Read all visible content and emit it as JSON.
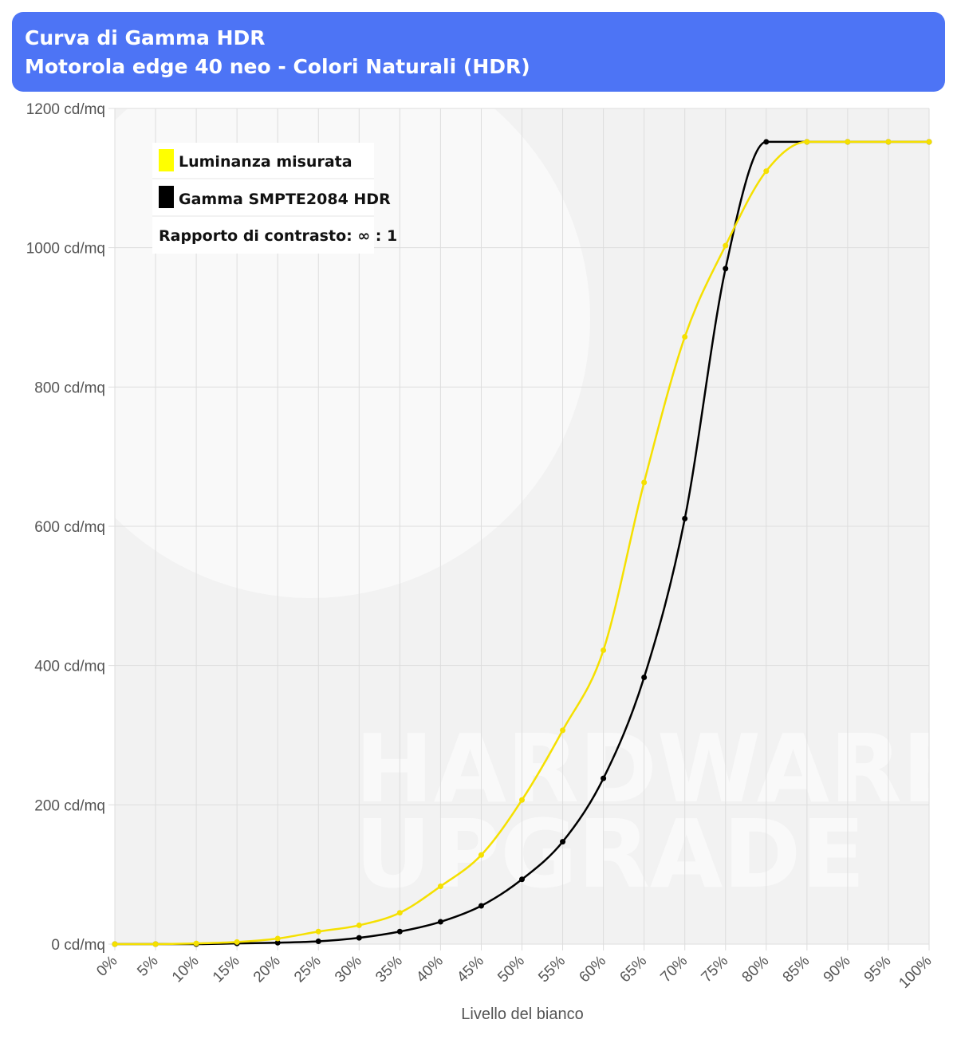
{
  "header": {
    "title": "Curva di Gamma HDR",
    "subtitle": "Motorola edge 40 neo - Colori Naturali (HDR)"
  },
  "watermark": {
    "line1": "HARDWARE",
    "line2": "UPGRADE"
  },
  "legend": {
    "items": [
      {
        "label": "Luminanza misurata",
        "color": "#ffff00"
      },
      {
        "label": "Gamma SMPTE2084 HDR",
        "color": "#000000"
      }
    ],
    "contrast": "Rapporto di contrasto: ∞ : 1"
  },
  "chart_data": {
    "type": "line",
    "xlabel": "Livello del bianco",
    "ylabel": "",
    "ylim": [
      0,
      1200
    ],
    "yticks": [
      "0 cd/mq",
      "200 cd/mq",
      "400 cd/mq",
      "600 cd/mq",
      "800 cd/mq",
      "1000 cd/mq",
      "1200 cd/mq"
    ],
    "categories": [
      "0%",
      "5%",
      "10%",
      "15%",
      "20%",
      "25%",
      "30%",
      "35%",
      "40%",
      "45%",
      "50%",
      "55%",
      "60%",
      "65%",
      "70%",
      "75%",
      "80%",
      "85%",
      "90%",
      "95%",
      "100%"
    ],
    "grid": true,
    "legend_position": "top-left",
    "series": [
      {
        "name": "Luminanza misurata",
        "color": "#f5e000",
        "values": [
          0,
          0,
          1,
          3,
          8,
          18,
          27,
          45,
          83,
          128,
          207,
          307,
          422,
          663,
          872,
          1003,
          1110,
          1152,
          1152,
          1152,
          1152
        ]
      },
      {
        "name": "Gamma SMPTE2084 HDR",
        "color": "#000000",
        "values": [
          0,
          0,
          0,
          1,
          2,
          4,
          9,
          18,
          32,
          55,
          93,
          147,
          238,
          383,
          611,
          970,
          1152,
          1152,
          1152,
          1152,
          1152
        ]
      }
    ]
  }
}
